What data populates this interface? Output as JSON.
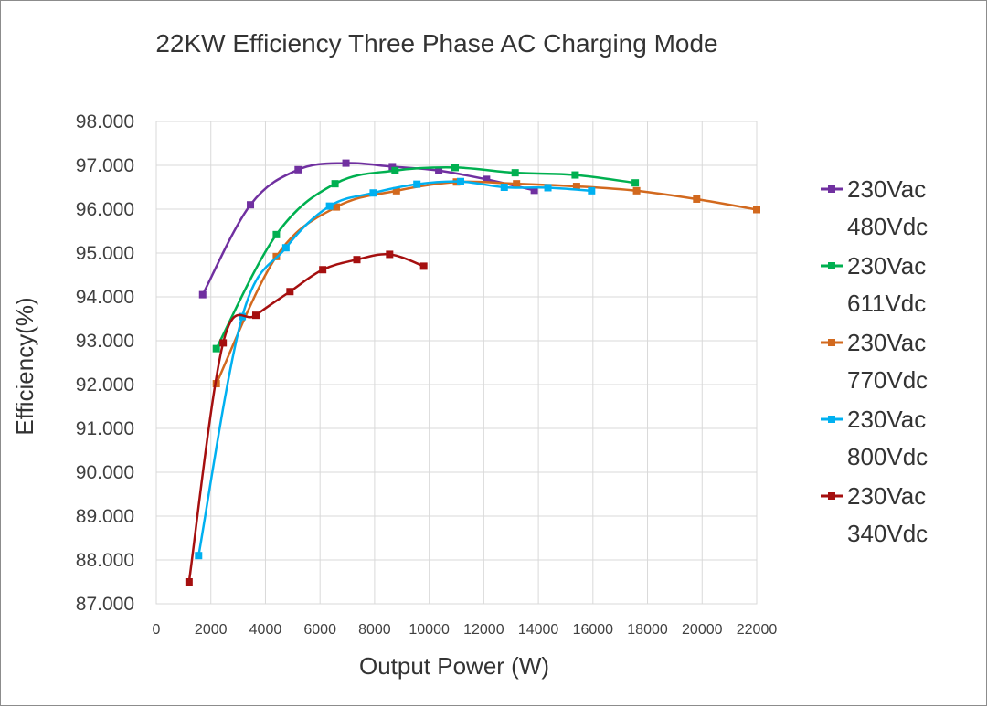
{
  "chart_data": {
    "type": "line",
    "title": "22KW Efficiency Three Phase AC Charging Mode",
    "xlabel": "Output Power (W)",
    "ylabel": "Efficiency(%)",
    "xlim": [
      0,
      22000
    ],
    "ylim": [
      87,
      98
    ],
    "x_ticks": [
      "0",
      "2000",
      "4000",
      "6000",
      "8000",
      "10000",
      "12000",
      "14000",
      "16000",
      "18000",
      "20000",
      "22000"
    ],
    "y_ticks": [
      "98.000",
      "97.000",
      "96.000",
      "95.000",
      "94.000",
      "93.000",
      "92.000",
      "91.000",
      "90.000",
      "89.000",
      "88.000",
      "87.000"
    ],
    "grid": true,
    "legend_position": "right",
    "series": [
      {
        "name_line1": "230Vac",
        "name_line2": "480Vdc",
        "color": "#7030A0",
        "x": [
          1700,
          3450,
          5200,
          6950,
          8650,
          10350,
          12100,
          13850
        ],
        "y": [
          94.05,
          96.1,
          96.9,
          97.05,
          96.97,
          96.88,
          96.68,
          96.43
        ]
      },
      {
        "name_line1": "230Vac",
        "name_line2": "611Vdc",
        "color": "#00B050",
        "x": [
          2200,
          4400,
          6550,
          8750,
          10950,
          13150,
          15350,
          17550
        ],
        "y": [
          92.82,
          95.42,
          96.58,
          96.88,
          96.95,
          96.83,
          96.78,
          96.6
        ]
      },
      {
        "name_line1": "230Vac",
        "name_line2": "770Vdc",
        "color": "#D2691E",
        "x": [
          2200,
          4400,
          6600,
          8800,
          11000,
          13200,
          15400,
          17600,
          19800,
          22000
        ],
        "y": [
          92.02,
          94.92,
          96.05,
          96.42,
          96.62,
          96.58,
          96.52,
          96.42,
          96.23,
          95.99
        ]
      },
      {
        "name_line1": "230Vac",
        "name_line2": "800Vdc",
        "color": "#00B0F0",
        "x": [
          1550,
          3150,
          4750,
          6350,
          7950,
          9550,
          11150,
          12750,
          14350,
          15950
        ],
        "y": [
          88.1,
          93.55,
          95.12,
          96.07,
          96.37,
          96.57,
          96.63,
          96.5,
          96.49,
          96.42
        ]
      },
      {
        "name_line1": "230Vac",
        "name_line2": "340Vdc",
        "color": "#A50F0F",
        "x": [
          1200,
          2450,
          3650,
          4900,
          6100,
          7350,
          8550,
          9800
        ],
        "y": [
          87.5,
          92.95,
          93.58,
          94.12,
          94.62,
          94.85,
          94.97,
          94.7
        ]
      }
    ]
  }
}
